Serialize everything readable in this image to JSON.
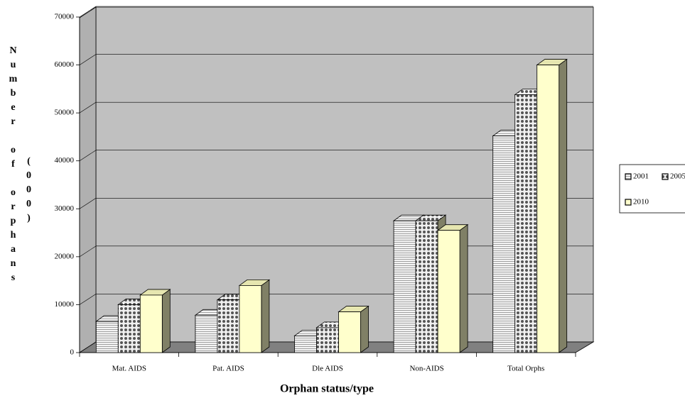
{
  "chart_data": {
    "type": "bar3d",
    "x_label": "Orphan status/type",
    "y_label": "Number of orphans",
    "y_label_unit": "(000)",
    "categories": [
      "Mat. AIDS",
      "Pat. AIDS",
      "Dle AIDS",
      "Non-AIDS",
      "Total Orphs"
    ],
    "series": [
      {
        "name": "2001",
        "color": "#e8e8e8",
        "pattern": "horizontal-lines",
        "values": [
          6500,
          7800,
          3500,
          27500,
          45200
        ]
      },
      {
        "name": "2005",
        "color": "#d0d0d0",
        "pattern": "dots",
        "values": [
          10000,
          11000,
          5200,
          27500,
          53800
        ]
      },
      {
        "name": "2010",
        "color": "#ffffcc",
        "pattern": "solid",
        "values": [
          12000,
          14000,
          8500,
          25500,
          60000
        ]
      }
    ],
    "ylim": [
      0,
      70000
    ],
    "yticks": [
      0,
      10000,
      20000,
      30000,
      40000,
      50000,
      60000,
      70000
    ],
    "grid": true,
    "legend": "right"
  }
}
